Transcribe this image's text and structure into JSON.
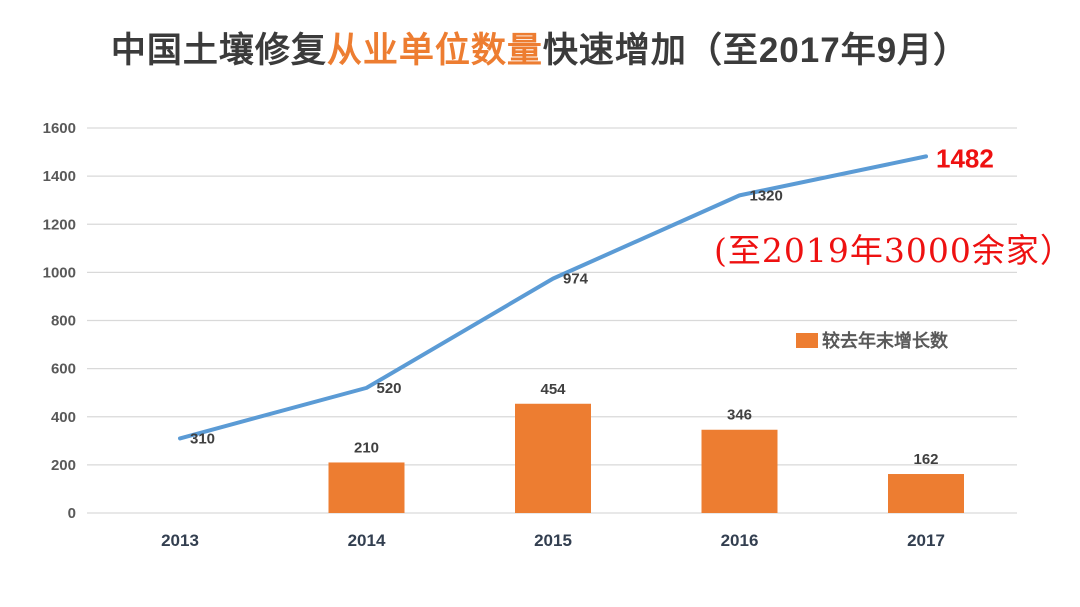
{
  "title": {
    "part1": "中国土壤修复",
    "highlight": "从业单位数量",
    "part2": "快速增加（至2017年9月）"
  },
  "annotation": {
    "text": "(至2019年3000余家）"
  },
  "legend": {
    "label": "较去年末增长数"
  },
  "colors": {
    "bar_orange": "#ed7d31",
    "line_blue": "#5b9bd5",
    "accent_red": "#ee1111",
    "grid": "#d9d9d9",
    "axis_tick_text": "#595959",
    "data_label_text": "#404040",
    "x_label_text": "#333f50",
    "title_text": "#3b3b3b"
  },
  "chart_data": {
    "type": "combo",
    "categories": [
      "2013",
      "2014",
      "2015",
      "2016",
      "2017"
    ],
    "series": [
      {
        "name": "从业单位数量",
        "type": "line",
        "values": [
          310,
          520,
          974,
          1320,
          1482
        ],
        "color": "#5b9bd5",
        "final_label_color": "#ee1111"
      },
      {
        "name": "较去年末增长数",
        "type": "bar",
        "values": [
          null,
          210,
          454,
          346,
          162
        ],
        "color": "#ed7d31"
      }
    ],
    "title": "中国土壤修复从业单位数量快速增加（至2017年9月）",
    "xlabel": "",
    "ylabel": "",
    "ylim": [
      0,
      1600
    ],
    "ytick_step": 200,
    "grid": true,
    "legend_position": "center-right",
    "legend_entries": [
      "较去年末增长数"
    ],
    "annotations": [
      "(至2019年3000余家）",
      "1482"
    ]
  }
}
